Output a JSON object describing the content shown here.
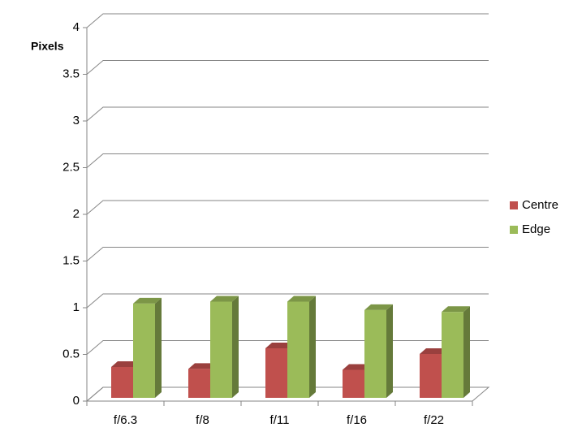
{
  "chart_data": {
    "type": "bar3d",
    "y_label": "Pixels",
    "categories": [
      "f/6.3",
      "f/8",
      "f/11",
      "f/16",
      "f/22"
    ],
    "series": [
      {
        "name": "Centre",
        "color": "#c0504d",
        "values": [
          0.33,
          0.31,
          0.53,
          0.3,
          0.47
        ]
      },
      {
        "name": "Edge",
        "color": "#9bbb59",
        "values": [
          1.01,
          1.03,
          1.03,
          0.94,
          0.92
        ]
      }
    ],
    "ylim": [
      0,
      4
    ],
    "yticks": [
      0,
      0.5,
      1,
      1.5,
      2,
      2.5,
      3,
      3.5,
      4
    ],
    "grid": true,
    "legend": "right"
  }
}
